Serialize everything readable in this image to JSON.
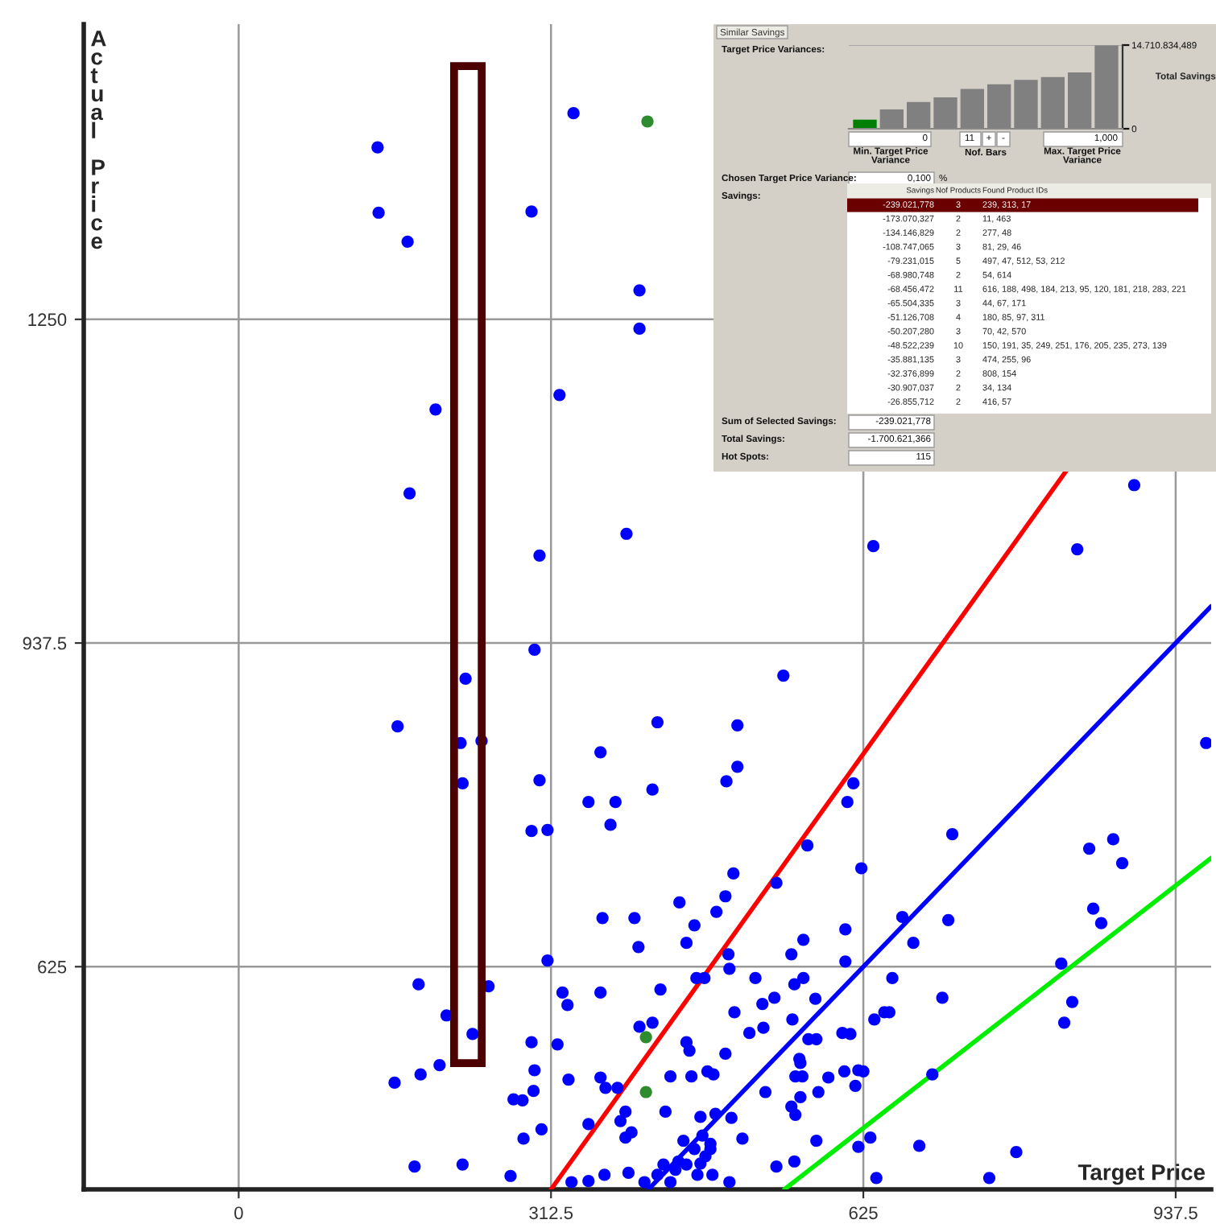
{
  "chart_data": [
    {
      "type": "scatter",
      "xlabel": "Target Price",
      "ylabel": "Actual Price",
      "xlim": [
        -155,
        973
      ],
      "ylim": [
        410,
        1535
      ],
      "xticks": [
        0,
        312.5,
        625,
        937.5
      ],
      "yticks": [
        625,
        937.5,
        1250
      ],
      "grid": true,
      "series": [
        {
          "color": "#0000ff",
          "marker": "circle",
          "x": [
            335,
            139,
            140,
            293,
            169,
            401,
            401,
            321,
            197,
            171,
            388,
            301,
            296,
            227,
            159,
            222,
            243,
            362,
            224,
            301,
            350,
            377,
            372,
            293,
            309,
            364,
            396,
            400,
            309,
            180,
            250,
            324,
            362,
            329,
            208,
            234,
            293,
            319,
            182,
            201,
            156,
            296,
            330,
            295,
            362,
            367,
            379,
            275,
            284,
            387,
            303,
            350,
            382,
            285,
            387,
            393,
            176,
            224,
            272,
            333,
            350,
            366,
            390,
            896,
            635,
            839,
            545,
            499,
            419,
            499,
            488,
            414,
            615,
            609,
            714,
            569,
            851,
            875,
            884,
            623,
            968,
            495,
            538,
            487,
            441,
            456,
            478,
            448,
            664,
            710,
            855,
            863,
            607,
            565,
            553,
            675,
            490,
            491,
            607,
            466,
            458,
            517,
            565,
            556,
            654,
            823,
            422,
            536,
            524,
            577,
            704,
            834,
            826,
            646,
            651,
            636,
            496,
            554,
            401,
            414,
            511,
            525,
            570,
            578,
            604,
            612,
            448,
            451,
            487,
            561,
            562,
            469,
            475,
            606,
            620,
            625,
            432,
            453,
            557,
            564,
            590,
            694,
            617,
            527,
            580,
            562,
            553,
            557,
            427,
            462,
            477,
            493,
            445,
            464,
            472,
            504,
            578,
            632,
            681,
            778,
            620,
            472,
            456,
            467,
            440,
            425,
            448,
            462,
            538,
            556,
            419,
            437,
            459,
            474,
            406,
            432,
            491,
            638,
            751
          ],
          "values": [
            1449,
            1416,
            1353,
            1354,
            1325,
            1278,
            1241,
            1177,
            1163,
            1082,
            1043,
            1022,
            931,
            903,
            857,
            841,
            843,
            832,
            802,
            805,
            784,
            784,
            762,
            756,
            757,
            672,
            672,
            644,
            631,
            608,
            606,
            600,
            600,
            588,
            578,
            560,
            552,
            550,
            521,
            530,
            513,
            525,
            516,
            505,
            518,
            508,
            508,
            497,
            496,
            485,
            468,
            473,
            476,
            459,
            460,
            465,
            432,
            434,
            423,
            417,
            418,
            424,
            426,
            1090,
            1031,
            1028,
            906,
            858,
            861,
            818,
            804,
            796,
            802,
            784,
            753,
            742,
            739,
            748,
            725,
            720,
            841,
            715,
            706,
            693,
            687,
            665,
            678,
            648,
            673,
            670,
            681,
            667,
            661,
            651,
            637,
            648,
            637,
            623,
            630,
            614,
            614,
            614,
            614,
            608,
            614,
            628,
            603,
            595,
            589,
            594,
            595,
            591,
            571,
            581,
            581,
            574,
            581,
            574,
            567,
            571,
            561,
            566,
            555,
            555,
            561,
            560,
            552,
            544,
            541,
            536,
            532,
            524,
            521,
            524,
            525,
            524,
            519,
            519,
            519,
            519,
            518,
            521,
            510,
            504,
            504,
            499,
            490,
            482,
            485,
            480,
            483,
            479,
            457,
            462,
            454,
            459,
            457,
            460,
            452,
            446,
            451,
            449,
            449,
            442,
            437,
            434,
            434,
            435,
            432,
            437,
            424,
            429,
            424,
            424,
            417,
            417,
            417,
            421,
            421
          ]
        },
        {
          "color": "#2e8b2e",
          "marker": "circle",
          "x": [
            409,
            407.5,
            407.5
          ],
          "values": [
            1441,
            557,
            504
          ]
        },
        {
          "type": "line",
          "color": "#ff0000",
          "x": [
            312.5,
            829
          ],
          "values": [
            410,
            1105
          ]
        },
        {
          "type": "line",
          "color": "#0000ff",
          "x": [
            410,
            973
          ],
          "values": [
            410,
            973
          ]
        },
        {
          "type": "line",
          "color": "#00ee00",
          "x": [
            546,
            973
          ],
          "values": [
            410,
            730
          ]
        }
      ]
    },
    {
      "type": "other",
      "title": "Similar Savings",
      "annotations": [
        "Target Price Variances:",
        "0",
        "Min. Target Price\nVariance",
        "11",
        "+",
        "-",
        "Nof. Bars",
        "1,000",
        "Max. Target Price\nVariance",
        "Chosen Target Price Variance:",
        "0,100",
        "%",
        "Savings:",
        "Sum of Selected Savings:",
        "-239.021,778",
        "Total Savings:",
        "-1.700.621,366",
        "Hot Spots:",
        "115"
      ]
    },
    {
      "type": "bar",
      "categories": [
        null,
        null,
        null,
        null,
        null,
        null,
        null,
        null,
        null,
        null
      ],
      "colors": [
        "#008000",
        "#808080",
        "#808080",
        "#808080",
        "#808080",
        "#808080",
        "#808080",
        "#808080",
        "#808080",
        "#808080"
      ],
      "y2lim": [
        0,
        14710834.489
      ],
      "y2ticks": [
        0,
        {
          "value": 14710834.489,
          "label": "14.710.834,489"
        }
      ],
      "y2label": "Total Savings",
      "series": [
        {
          "axis": "y2",
          "values": [
            1600000,
            3400000,
            4700000,
            5500000,
            7000000,
            7800000,
            8600000,
            9100000,
            9900000,
            14700000
          ]
        }
      ]
    },
    {
      "type": "other",
      "annotations": [
        "Savings",
        "Nof Products",
        "Found Product IDs",
        "-239.021,778",
        "3",
        "239, 313, 17",
        "-173.070,327",
        "2",
        "11, 463",
        "-134.146,829",
        "2",
        "277, 48",
        "-108.747,065",
        "3",
        "81, 29, 46",
        "-79.231,015",
        "5",
        "497, 47, 512, 53, 212",
        "-68.980,748",
        "2",
        "54, 614",
        "-68.456,472",
        "11",
        "616, 188, 498, 184, 213, 95, 120, 181, 218, 283, 221",
        "-65.504,335",
        "3",
        "44, 67, 171",
        "-51.126,708",
        "4",
        "180, 85, 97, 311",
        "-50.207,280",
        "3",
        "70, 42, 570",
        "-48.522,239",
        "10",
        "150, 191, 35, 249, 251, 176, 205, 235, 273, 139",
        "-35.881,135",
        "3",
        "474, 255, 96",
        "-32.376,899",
        "2",
        "808, 154",
        "-30.907,037",
        "2",
        "34, 134",
        "-26.855,712",
        "2",
        "416, 57"
      ]
    }
  ]
}
